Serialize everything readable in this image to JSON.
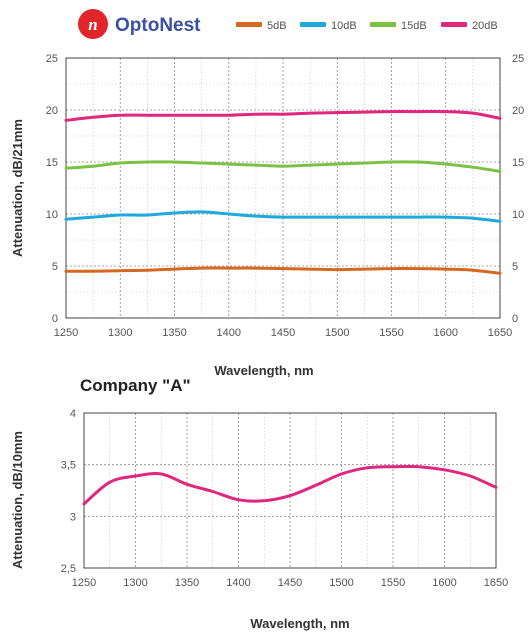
{
  "brand": {
    "name": "OptoNest",
    "logo_color": "#e0262a",
    "logo_icon": "stylized-n-logo-icon"
  },
  "chart_data": [
    {
      "type": "line",
      "title": "",
      "xlabel": "Wavelength, nm",
      "ylabel": "Attenuation, dB/21mm",
      "xlim": [
        1250,
        1650
      ],
      "ylim": [
        0,
        25
      ],
      "x_ticks": [
        "1250",
        "1300",
        "1350",
        "1400",
        "1450",
        "1500",
        "1550",
        "1600",
        "1650"
      ],
      "y_ticks": [
        "0",
        "5",
        "10",
        "15",
        "20",
        "25"
      ],
      "y_tick_values": [
        0,
        5,
        10,
        15,
        20,
        25
      ],
      "right_y_ticks": [
        "0",
        "5",
        "10",
        "15",
        "20",
        "25"
      ],
      "grid": true,
      "legend_position": "top",
      "series": [
        {
          "name": "5dB",
          "color": "#d2691e",
          "x": [
            1250,
            1275,
            1300,
            1325,
            1350,
            1375,
            1400,
            1425,
            1450,
            1475,
            1500,
            1525,
            1550,
            1575,
            1600,
            1625,
            1650
          ],
          "y": [
            4.5,
            4.5,
            4.55,
            4.6,
            4.7,
            4.8,
            4.8,
            4.8,
            4.75,
            4.7,
            4.65,
            4.7,
            4.75,
            4.75,
            4.7,
            4.6,
            4.3
          ]
        },
        {
          "name": "10dB",
          "color": "#1fa8dc",
          "x": [
            1250,
            1275,
            1300,
            1325,
            1350,
            1375,
            1400,
            1425,
            1450,
            1475,
            1500,
            1525,
            1550,
            1575,
            1600,
            1625,
            1650
          ],
          "y": [
            9.5,
            9.7,
            9.9,
            9.9,
            10.1,
            10.2,
            10.0,
            9.8,
            9.7,
            9.7,
            9.7,
            9.7,
            9.7,
            9.7,
            9.7,
            9.6,
            9.3
          ]
        },
        {
          "name": "15dB",
          "color": "#7cc242",
          "x": [
            1250,
            1275,
            1300,
            1325,
            1350,
            1375,
            1400,
            1425,
            1450,
            1475,
            1500,
            1525,
            1550,
            1575,
            1600,
            1625,
            1650
          ],
          "y": [
            14.4,
            14.6,
            14.9,
            15.0,
            15.0,
            14.9,
            14.8,
            14.7,
            14.6,
            14.7,
            14.8,
            14.9,
            15.0,
            15.0,
            14.8,
            14.5,
            14.1
          ]
        },
        {
          "name": "20dB",
          "color": "#e0267d",
          "x": [
            1250,
            1275,
            1300,
            1325,
            1350,
            1375,
            1400,
            1425,
            1450,
            1475,
            1500,
            1525,
            1550,
            1575,
            1600,
            1625,
            1650
          ],
          "y": [
            19.0,
            19.3,
            19.5,
            19.5,
            19.5,
            19.5,
            19.5,
            19.6,
            19.6,
            19.7,
            19.75,
            19.8,
            19.85,
            19.85,
            19.85,
            19.7,
            19.2
          ]
        }
      ]
    },
    {
      "type": "line",
      "title": "Company \"A\"",
      "xlabel": "Wavelength, nm",
      "ylabel": "Attenuation, dB/10mm",
      "xlim": [
        1250,
        1650
      ],
      "ylim": [
        2.5,
        4
      ],
      "x_ticks": [
        "1250",
        "1300",
        "1350",
        "1400",
        "1450",
        "1500",
        "1550",
        "1600",
        "1650"
      ],
      "y_ticks": [
        "2,5",
        "3",
        "3,5",
        "4"
      ],
      "y_tick_values": [
        2.5,
        3,
        3.5,
        4
      ],
      "grid": true,
      "series": [
        {
          "color": "#e0267d",
          "x": [
            1250,
            1275,
            1300,
            1325,
            1350,
            1375,
            1400,
            1425,
            1450,
            1475,
            1500,
            1525,
            1550,
            1575,
            1600,
            1625,
            1650
          ],
          "y": [
            3.12,
            3.33,
            3.39,
            3.41,
            3.31,
            3.24,
            3.16,
            3.15,
            3.2,
            3.3,
            3.41,
            3.47,
            3.48,
            3.48,
            3.45,
            3.39,
            3.28
          ]
        }
      ]
    }
  ]
}
